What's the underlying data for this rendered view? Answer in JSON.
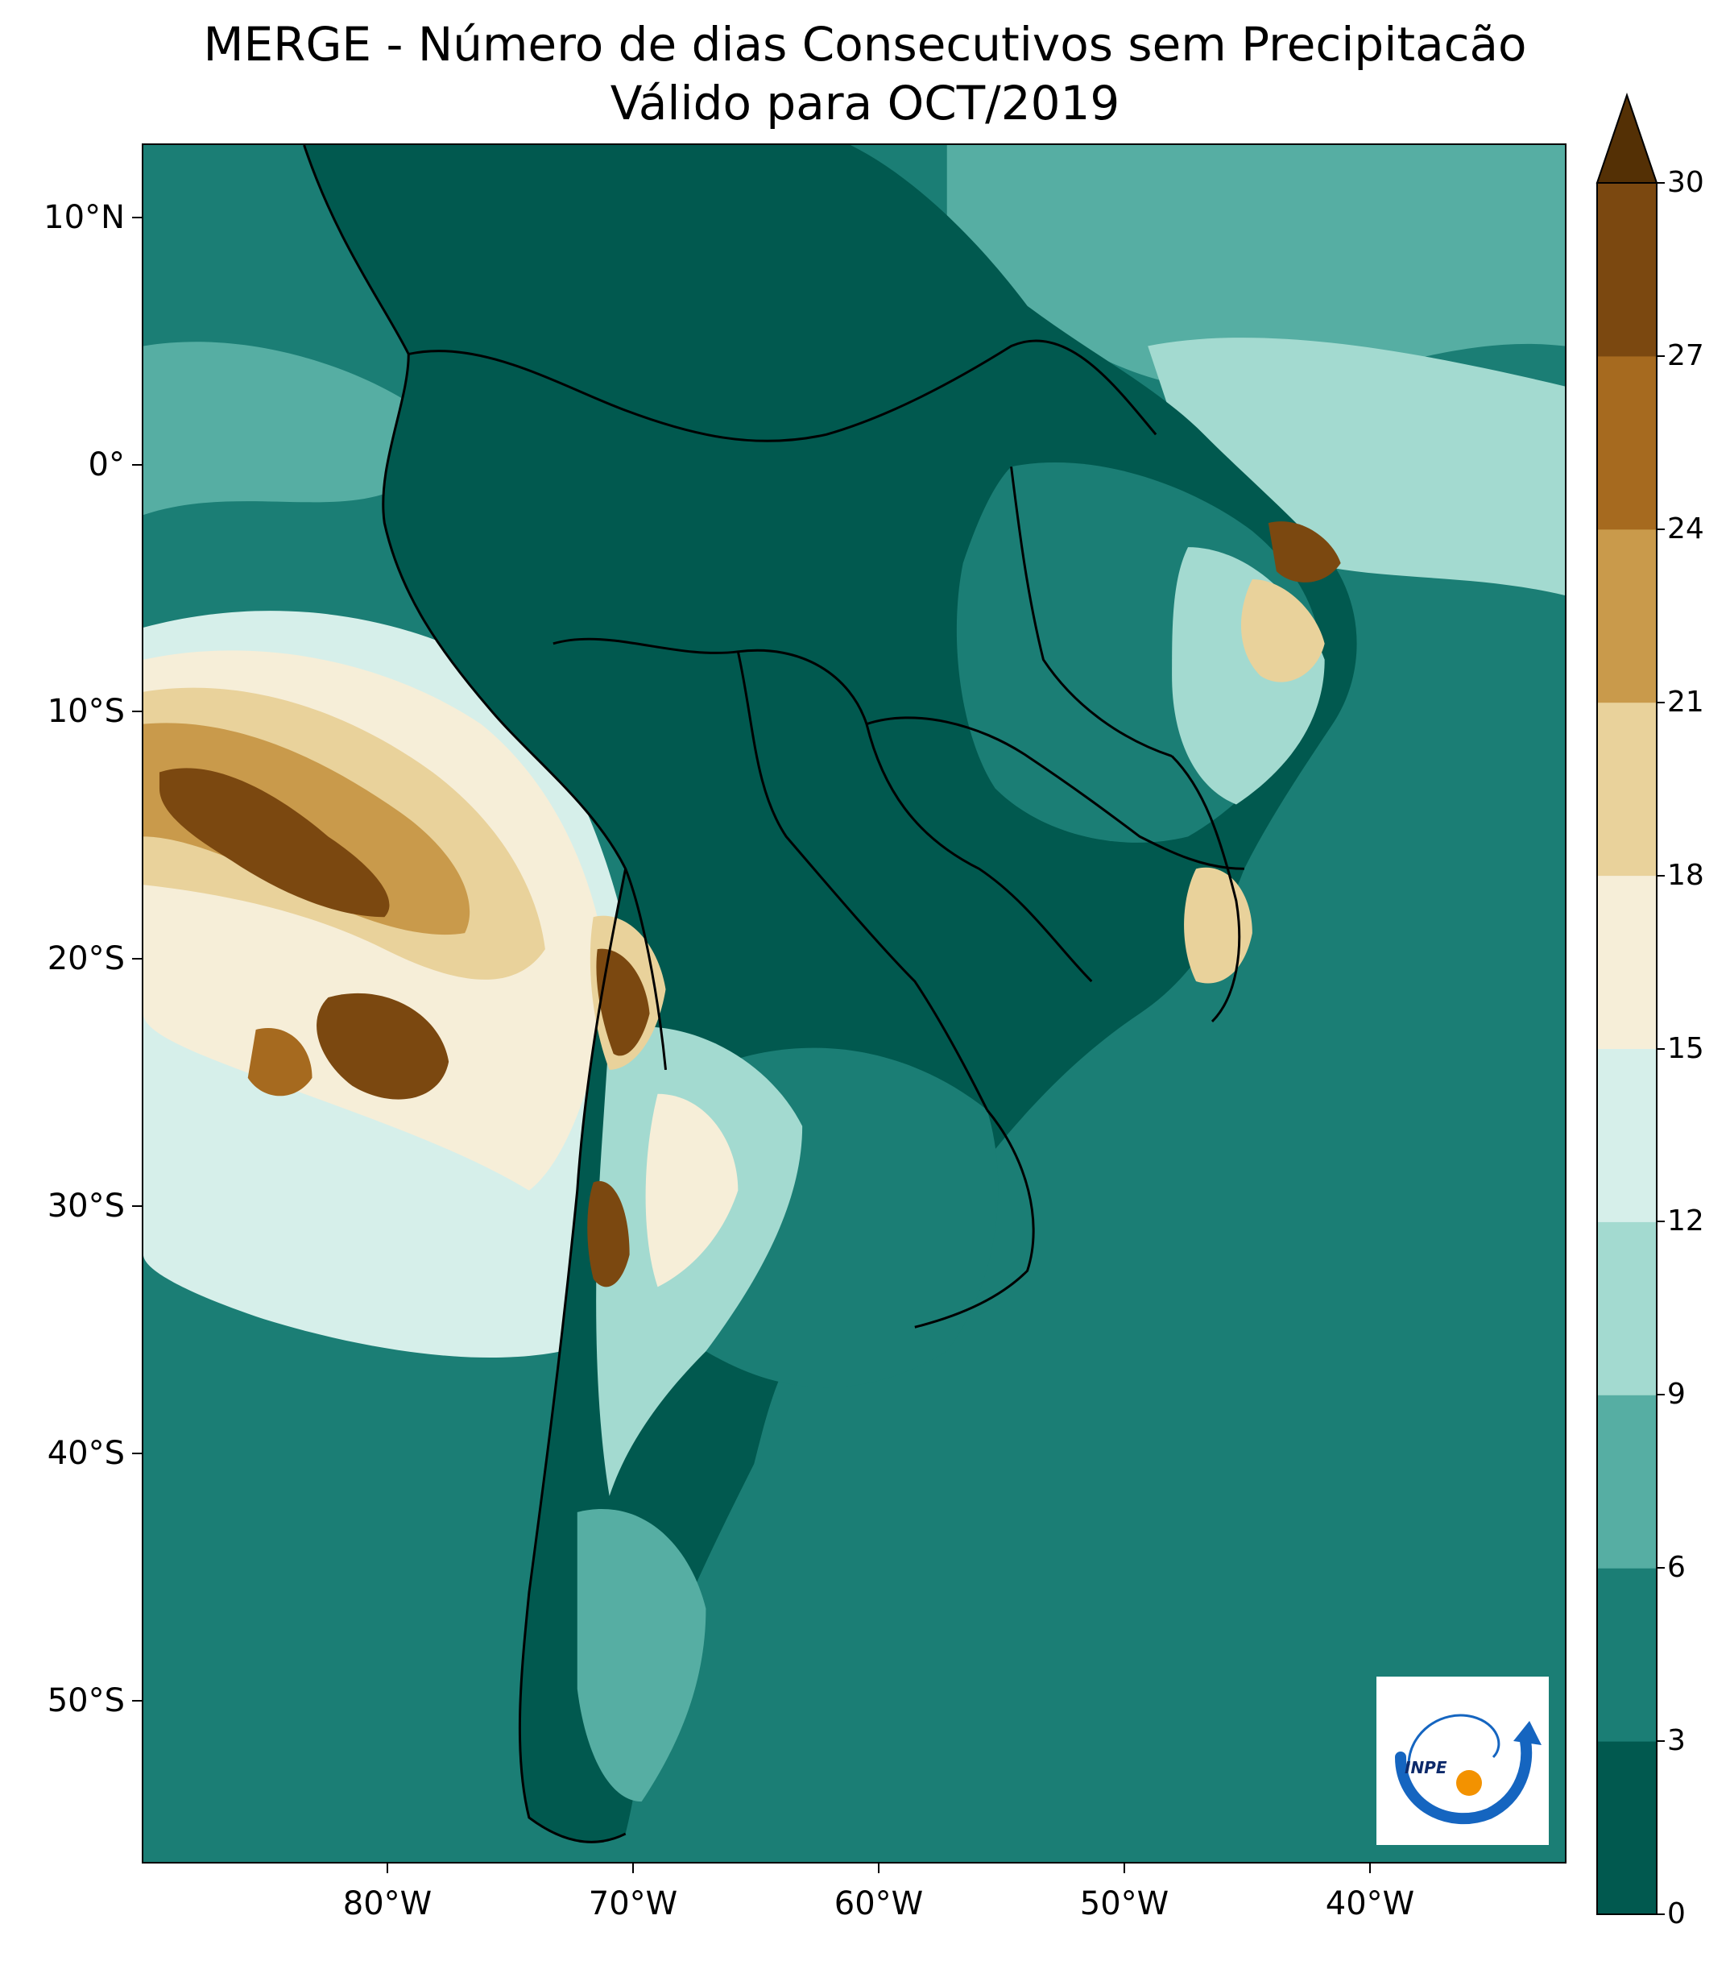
{
  "title": {
    "line1": "MERGE - Número de dias Consecutivos sem Precipitacão",
    "line2": "Válido para OCT/2019"
  },
  "map": {
    "lat_labels": [
      "10°N",
      "0°",
      "10°S",
      "20°S",
      "30°S",
      "40°S",
      "50°S"
    ],
    "lon_labels": [
      "80°W",
      "70°W",
      "60°W",
      "50°W",
      "40°W"
    ],
    "lat_range": [
      -56,
      13
    ],
    "lon_range": [
      -90,
      -32
    ],
    "background_color": "#1b7e75"
  },
  "colorbar": {
    "ticks": [
      "0",
      "3",
      "6",
      "9",
      "12",
      "15",
      "18",
      "21",
      "24",
      "27",
      "30"
    ],
    "colors": [
      "#01594f",
      "#1b7e75",
      "#56aea3",
      "#a3dad0",
      "#d6efea",
      "#f6eed8",
      "#e9d29b",
      "#c99a4b",
      "#a66a1f",
      "#7b4810"
    ],
    "extend_color": "#543005",
    "extend": "max"
  },
  "logo": {
    "text": "INPE",
    "icon": "inpe-logo-icon"
  }
}
